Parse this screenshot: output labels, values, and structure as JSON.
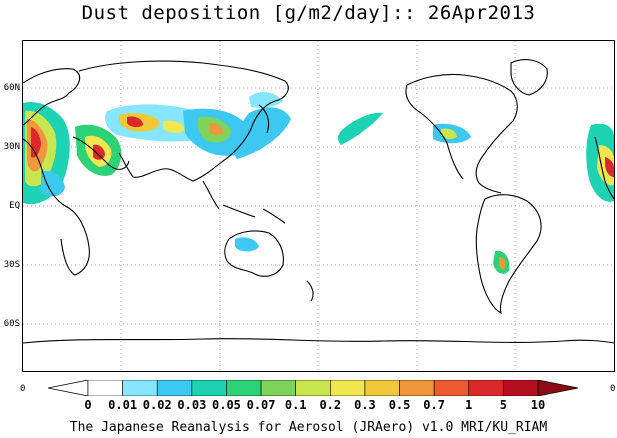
{
  "title": "Dust deposition [g/m2/day]:: 26Apr2013",
  "lat_labels": [
    "60N",
    "30N",
    "EQ",
    "30S",
    "60S"
  ],
  "lon_left": "0",
  "lon_right": "0",
  "colorbar": {
    "labels": [
      "0",
      "0.01",
      "0.02",
      "0.03",
      "0.05",
      "0.07",
      "0.1",
      "0.2",
      "0.3",
      "0.5",
      "0.7",
      "1",
      "5",
      "10"
    ],
    "colors": [
      "#ffffff",
      "#ffffff",
      "#87e6ff",
      "#3cc8f0",
      "#1ed2b4",
      "#2dd278",
      "#7fd25a",
      "#c8e650",
      "#f0e650",
      "#f0c83c",
      "#f0963c",
      "#ec5a32",
      "#dc2828",
      "#b40f1e",
      "#8c0a14"
    ]
  },
  "footer": "The Japanese Reanalysis for Aerosol (JRAero) v1.0 MRI/KU_RIAM"
}
